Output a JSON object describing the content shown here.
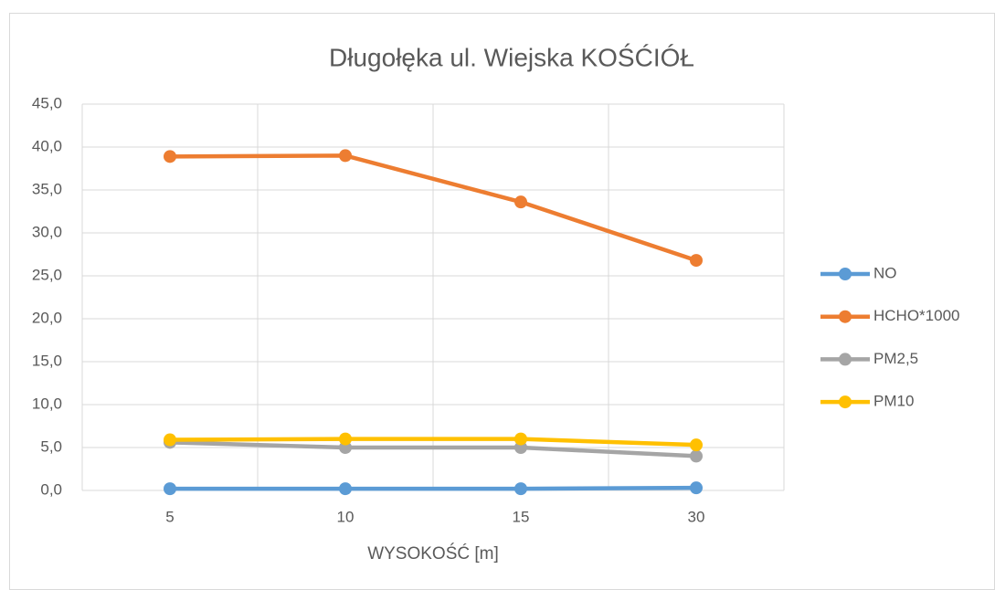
{
  "chart_data": {
    "type": "line",
    "title": "Długołęka ul. Wiejska KOŚĆIÓŁ",
    "x_label": "WYSOKOŚĆ  [m]",
    "categories": [
      "5",
      "10",
      "15",
      "30"
    ],
    "series": [
      {
        "name": "NO",
        "color": "#5b9bd5",
        "values": [
          0.2,
          0.2,
          0.2,
          0.3
        ]
      },
      {
        "name": "HCHO*1000",
        "color": "#ed7d31",
        "values": [
          38.9,
          39.0,
          33.6,
          26.8
        ]
      },
      {
        "name": "PM2,5",
        "color": "#a5a5a5",
        "values": [
          5.6,
          5.0,
          5.0,
          4.0
        ]
      },
      {
        "name": "PM10",
        "color": "#ffc000",
        "values": [
          5.9,
          6.0,
          6.0,
          5.3
        ]
      }
    ],
    "ylim": [
      0,
      45
    ],
    "yticks": [
      {
        "value": 0,
        "label": "0,0"
      },
      {
        "value": 5,
        "label": "5,0"
      },
      {
        "value": 10,
        "label": "10,0"
      },
      {
        "value": 15,
        "label": "15,0"
      },
      {
        "value": 20,
        "label": "20,0"
      },
      {
        "value": 25,
        "label": "25,0"
      },
      {
        "value": 30,
        "label": "30,0"
      },
      {
        "value": 35,
        "label": "35,0"
      },
      {
        "value": 40,
        "label": "40,0"
      },
      {
        "value": 45,
        "label": "45,0"
      }
    ],
    "grid": true,
    "legend": "right"
  }
}
